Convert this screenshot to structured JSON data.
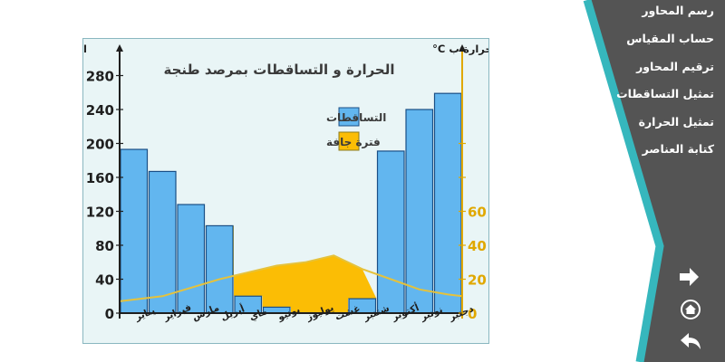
{
  "menu": {
    "items": [
      {
        "id": "axes",
        "label": "رسم المحاور"
      },
      {
        "id": "scale",
        "label": "حساب المقياس"
      },
      {
        "id": "numbering",
        "label": "ترقيم المحاور"
      },
      {
        "id": "precipitation",
        "label": "تمثيل التساقطات"
      },
      {
        "id": "temperature",
        "label": "تمثيل الحرارة"
      },
      {
        "id": "elements",
        "label": "كتابة العناصر"
      }
    ]
  },
  "nav": {
    "next_icon": "arrow-right-icon",
    "home_icon": "home-icon",
    "back_icon": "undo-arrow-icon"
  },
  "colors": {
    "sidebar": "#545454",
    "sidebar_stripe": "#36b7bd",
    "panel_bg": "#e9f5f6",
    "bar": "#62b6ef",
    "bar_stroke": "#1a4f86",
    "dry_fill": "#fbbd05",
    "temp_line": "#e5c23c",
    "left_axis": "#1f1f1f",
    "right_axis": "#e0a800",
    "title": "#3a3a3a"
  },
  "chart_data": {
    "type": "bar",
    "title": "الحرارة و التساقطات بمرصد طنجة",
    "categories": [
      "يناير",
      "فبراير",
      "مارس",
      "أبريل",
      "ماي",
      "يونيو",
      "يوليوز",
      "غشت",
      "شتنبر",
      "أكتوبر",
      "نونبر",
      "دجنبر"
    ],
    "series": [
      {
        "name": "التساقطات",
        "axis": "left",
        "values": [
          193,
          167,
          128,
          103,
          20,
          7,
          0,
          0,
          17,
          191,
          240,
          259
        ]
      },
      {
        "axis": "right",
        "type": "line",
        "values": [
          8,
          10,
          15,
          20,
          24,
          28,
          30,
          34,
          26,
          20,
          14,
          11
        ]
      }
    ],
    "left_axis": {
      "label": "التساقطات ب mm",
      "ticks": [
        0,
        40,
        80,
        120,
        160,
        200,
        240,
        280
      ],
      "ylim": [
        0,
        300
      ]
    },
    "right_axis": {
      "label": "الحرارة ب C°",
      "ticks": [
        0,
        20,
        40,
        60
      ],
      "ylim": [
        0,
        150
      ]
    },
    "legend": [
      {
        "label": "التساقطات",
        "kind": "bar"
      },
      {
        "label": "فترة جافة",
        "kind": "dry"
      }
    ],
    "legend_placement": "top-center",
    "grid": false
  }
}
